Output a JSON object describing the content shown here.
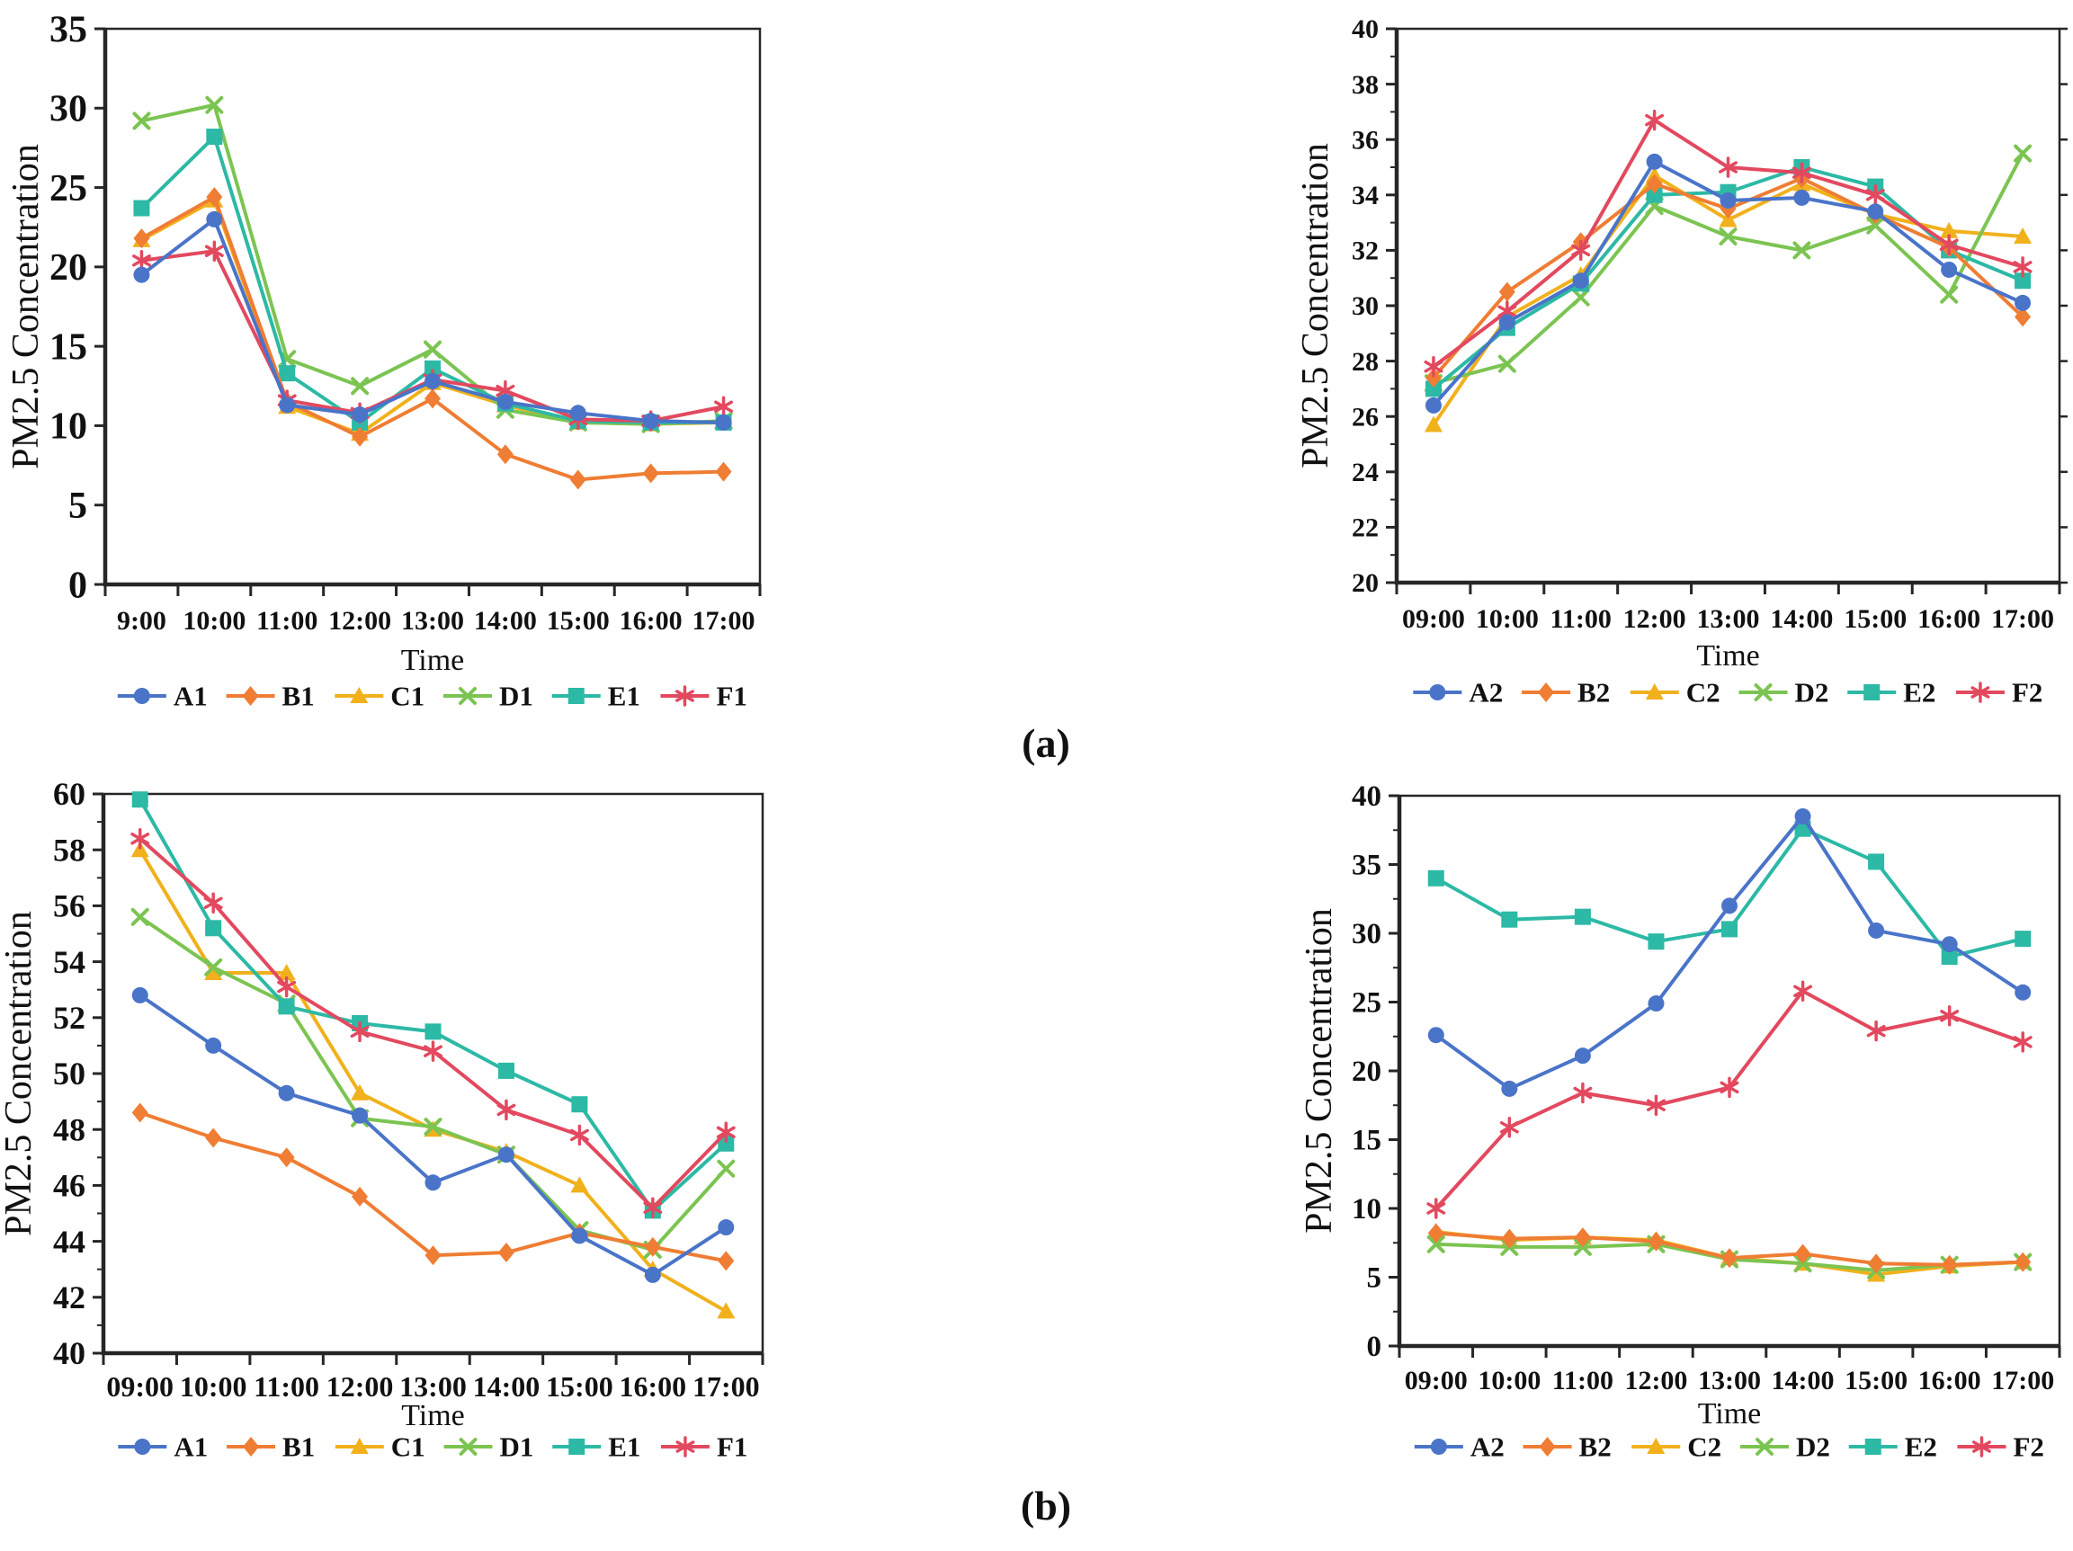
{
  "figure_labels": {
    "a": "(a)",
    "b": "(b)"
  },
  "palette": {
    "A": "#4a74c8",
    "B": "#ef7d33",
    "C": "#f1b11c",
    "D": "#7cc452",
    "E": "#2cb9a5",
    "F": "#e2495f"
  },
  "chart_data": [
    {
      "id": "pm25-panel-a-left",
      "type": "line",
      "ylabel": "PM2.5 Concentration",
      "xlabel": "Time",
      "ylim": [
        0,
        35
      ],
      "ytick_step": 5,
      "ytick_minor_step": null,
      "grid": "off",
      "legend_position": "bottom",
      "categories": [
        "9:00",
        "10:00",
        "11:00",
        "12:00",
        "13:00",
        "14:00",
        "15:00",
        "16:00",
        "17:00"
      ],
      "series": [
        {
          "name": "A1",
          "color": "A",
          "marker": "circle",
          "values": [
            19.5,
            23.0,
            11.3,
            10.7,
            12.8,
            11.5,
            10.8,
            10.3,
            10.2
          ]
        },
        {
          "name": "B1",
          "color": "B",
          "marker": "diamond",
          "values": [
            21.8,
            24.4,
            11.5,
            9.3,
            11.7,
            8.2,
            6.6,
            7.0,
            7.1
          ]
        },
        {
          "name": "C1",
          "color": "C",
          "marker": "triangle",
          "values": [
            21.7,
            24.2,
            11.2,
            9.5,
            12.7,
            11.3,
            10.2,
            10.1,
            10.2
          ]
        },
        {
          "name": "D1",
          "color": "D",
          "marker": "x",
          "values": [
            29.2,
            30.2,
            14.2,
            12.5,
            14.8,
            11.0,
            10.2,
            10.1,
            10.3
          ]
        },
        {
          "name": "E1",
          "color": "E",
          "marker": "square",
          "values": [
            23.7,
            28.2,
            13.3,
            10.2,
            13.6,
            11.4,
            10.3,
            10.2,
            10.2
          ]
        },
        {
          "name": "F1",
          "color": "F",
          "marker": "star",
          "values": [
            20.4,
            21.0,
            11.6,
            10.8,
            12.9,
            12.2,
            10.4,
            10.3,
            11.2
          ]
        }
      ]
    },
    {
      "id": "pm25-panel-a-right",
      "type": "line",
      "ylabel": "PM2.5 Concentration",
      "xlabel": "Time",
      "ylim": [
        20,
        40
      ],
      "ytick_step": 2,
      "ytick_minor_step": 1,
      "grid": "off",
      "legend_position": "bottom",
      "categories": [
        "09:00",
        "10:00",
        "11:00",
        "12:00",
        "13:00",
        "14:00",
        "15:00",
        "16:00",
        "17:00"
      ],
      "series": [
        {
          "name": "A2",
          "color": "A",
          "marker": "circle",
          "values": [
            26.4,
            29.4,
            30.9,
            35.2,
            33.8,
            33.9,
            33.4,
            31.3,
            30.1
          ]
        },
        {
          "name": "B2",
          "color": "B",
          "marker": "diamond",
          "values": [
            27.4,
            30.5,
            32.3,
            34.4,
            33.5,
            34.6,
            33.3,
            32.1,
            29.6
          ]
        },
        {
          "name": "C2",
          "color": "C",
          "marker": "triangle",
          "values": [
            25.7,
            29.6,
            31.1,
            34.7,
            33.1,
            34.4,
            33.3,
            32.7,
            32.5
          ]
        },
        {
          "name": "D2",
          "color": "D",
          "marker": "x",
          "values": [
            27.2,
            27.9,
            30.3,
            33.6,
            32.5,
            32.0,
            32.9,
            30.4,
            35.5
          ]
        },
        {
          "name": "E2",
          "color": "E",
          "marker": "square",
          "values": [
            27.0,
            29.2,
            30.8,
            34.0,
            34.1,
            35.0,
            34.3,
            32.0,
            30.9
          ]
        },
        {
          "name": "F2",
          "color": "F",
          "marker": "star",
          "values": [
            27.8,
            29.8,
            32.0,
            36.7,
            35.0,
            34.8,
            34.0,
            32.2,
            31.4
          ]
        }
      ]
    },
    {
      "id": "pm25-panel-b-left",
      "type": "line",
      "ylabel": "PM2.5 Concentration",
      "xlabel": "Time",
      "ylim": [
        40,
        60
      ],
      "ytick_step": 2,
      "ytick_minor_step": 1,
      "grid": "off",
      "legend_position": "bottom",
      "categories": [
        "09:00",
        "10:00",
        "11:00",
        "12:00",
        "13:00",
        "14:00",
        "15:00",
        "16:00",
        "17:00"
      ],
      "series": [
        {
          "name": "A1",
          "color": "A",
          "marker": "circle",
          "values": [
            52.8,
            51.0,
            49.3,
            48.5,
            46.1,
            47.1,
            44.2,
            42.8,
            44.5
          ]
        },
        {
          "name": "B1",
          "color": "B",
          "marker": "diamond",
          "values": [
            48.6,
            47.7,
            47.0,
            45.6,
            43.5,
            43.6,
            44.3,
            43.8,
            43.3
          ]
        },
        {
          "name": "C1",
          "color": "C",
          "marker": "triangle",
          "values": [
            58.0,
            53.6,
            53.6,
            49.3,
            48.0,
            47.2,
            46.0,
            43.0,
            41.5
          ]
        },
        {
          "name": "D1",
          "color": "D",
          "marker": "x",
          "values": [
            55.6,
            53.8,
            52.5,
            48.4,
            48.1,
            47.1,
            44.4,
            43.7,
            46.6
          ]
        },
        {
          "name": "E1",
          "color": "E",
          "marker": "square",
          "values": [
            59.8,
            55.2,
            52.4,
            51.8,
            51.5,
            50.1,
            48.9,
            45.1,
            47.5
          ]
        },
        {
          "name": "F1",
          "color": "F",
          "marker": "star",
          "values": [
            58.4,
            56.1,
            53.1,
            51.5,
            50.8,
            48.7,
            47.8,
            45.2,
            47.9
          ]
        }
      ]
    },
    {
      "id": "pm25-panel-b-right",
      "type": "line",
      "ylabel": "PM2.5 Concentration",
      "xlabel": "Time",
      "ylim": [
        0,
        40
      ],
      "ytick_step": 5,
      "ytick_minor_step": 2.5,
      "grid": "off",
      "legend_position": "bottom",
      "categories": [
        "09:00",
        "10:00",
        "11:00",
        "12:00",
        "13:00",
        "14:00",
        "15:00",
        "16:00",
        "17:00"
      ],
      "series": [
        {
          "name": "A2",
          "color": "A",
          "marker": "circle",
          "values": [
            22.6,
            18.7,
            21.1,
            24.9,
            32.0,
            38.5,
            30.2,
            29.2,
            25.7
          ]
        },
        {
          "name": "B2",
          "color": "B",
          "marker": "diamond",
          "values": [
            8.2,
            7.8,
            7.9,
            7.6,
            6.4,
            6.7,
            6.0,
            5.9,
            6.1
          ]
        },
        {
          "name": "C2",
          "color": "C",
          "marker": "triangle",
          "values": [
            8.3,
            7.7,
            7.9,
            7.7,
            6.4,
            6.0,
            5.2,
            5.8,
            6.1
          ]
        },
        {
          "name": "D2",
          "color": "D",
          "marker": "x",
          "values": [
            7.4,
            7.2,
            7.2,
            7.4,
            6.3,
            6.0,
            5.5,
            5.9,
            6.1
          ]
        },
        {
          "name": "E2",
          "color": "E",
          "marker": "square",
          "values": [
            34.0,
            31.0,
            31.2,
            29.4,
            30.3,
            37.6,
            35.2,
            28.3,
            29.6
          ]
        },
        {
          "name": "F2",
          "color": "F",
          "marker": "star",
          "values": [
            10.0,
            15.9,
            18.4,
            17.5,
            18.8,
            25.8,
            22.9,
            24.0,
            22.1
          ]
        }
      ]
    }
  ]
}
